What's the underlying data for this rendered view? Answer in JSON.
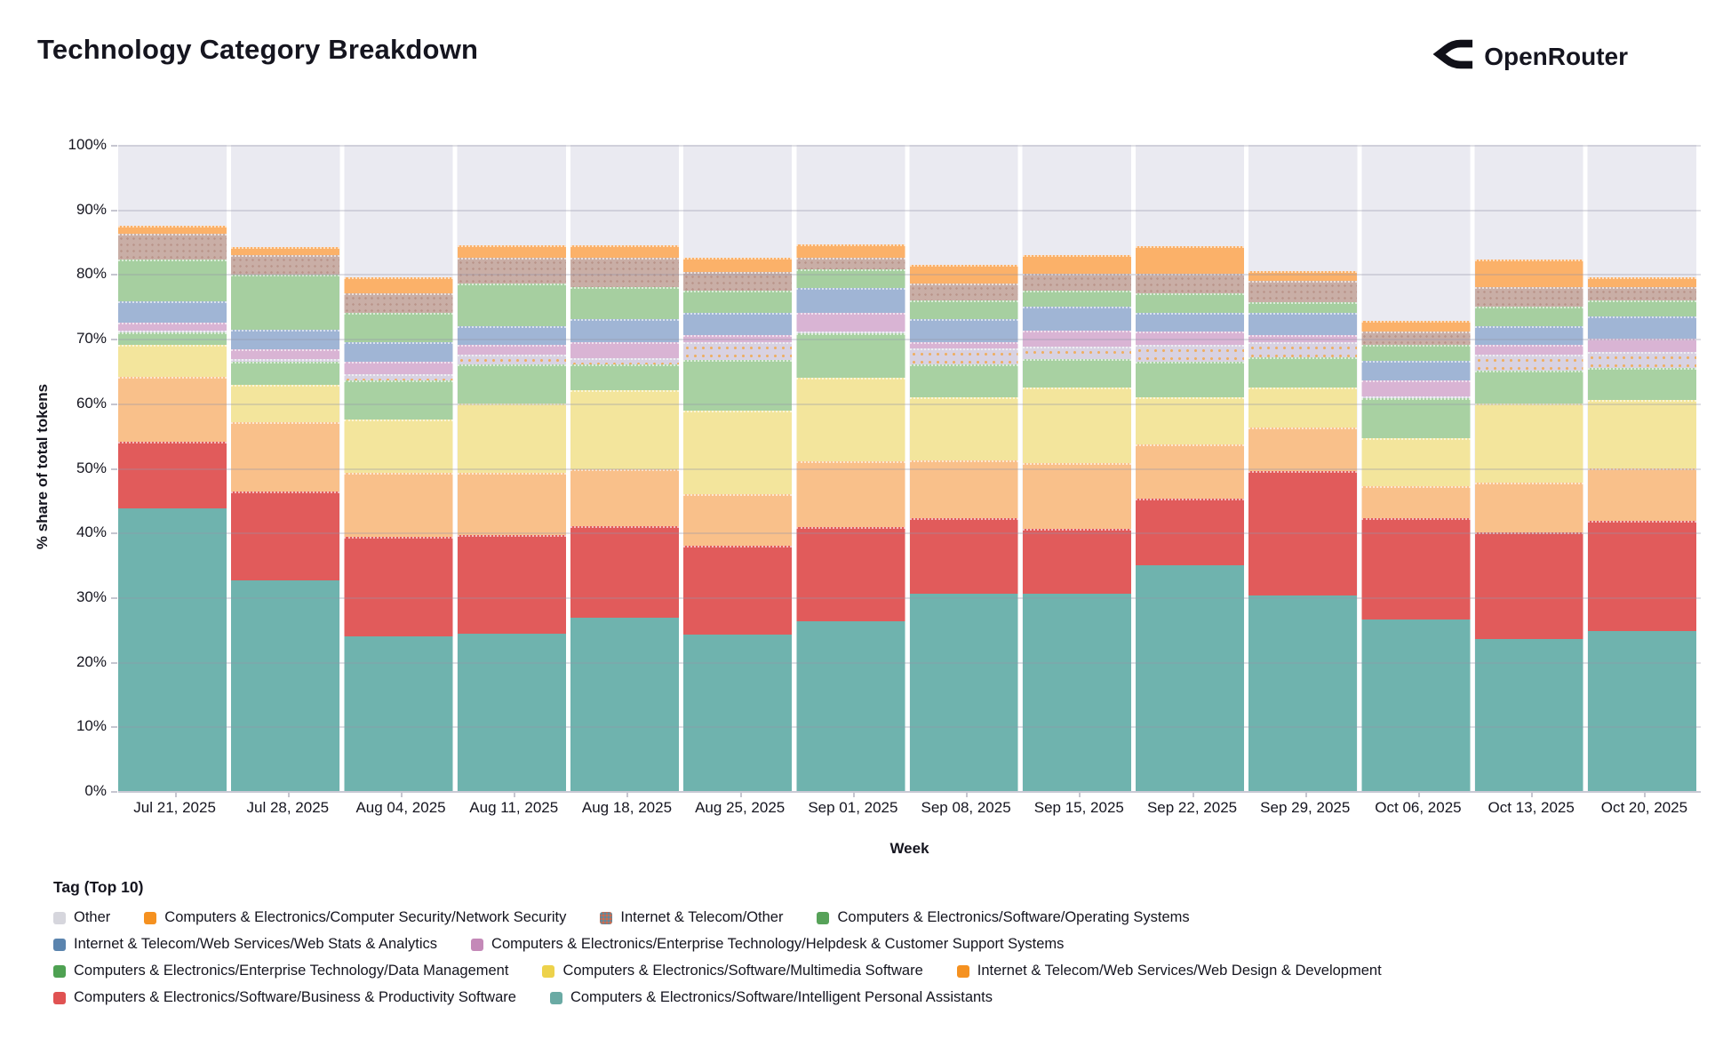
{
  "header": {
    "title": "Technology Category Breakdown",
    "brand": "OpenRouter"
  },
  "chart_data": {
    "type": "bar",
    "stacked": true,
    "title": "Technology Category Breakdown",
    "xlabel": "Week",
    "ylabel": "% share of total tokens",
    "ylim": [
      0,
      100
    ],
    "grid": true,
    "legend_position": "bottom",
    "legend_title": "Tag (Top 10)",
    "yticks": [
      0,
      10,
      20,
      30,
      40,
      50,
      60,
      70,
      80,
      90,
      100
    ],
    "ytick_labels": [
      "0%",
      "10%",
      "20%",
      "30%",
      "40%",
      "50%",
      "60%",
      "70%",
      "80%",
      "90%",
      "100%"
    ],
    "categories": [
      "Jul 21, 2025",
      "Jul 28, 2025",
      "Aug 04, 2025",
      "Aug 11, 2025",
      "Aug 18, 2025",
      "Aug 25, 2025",
      "Sep 01, 2025",
      "Sep 08, 2025",
      "Sep 15, 2025",
      "Sep 22, 2025",
      "Sep 29, 2025",
      "Oct 06, 2025",
      "Oct 13, 2025",
      "Oct 20, 2025"
    ],
    "series": [
      {
        "id": "ipa",
        "name": "Computers & Electronics/Software/Intelligent Personal Assistants",
        "color": "#6aaaa4",
        "bar_color": "#6fb3ae",
        "values": [
          43.7,
          32.6,
          24.0,
          24.4,
          26.8,
          24.2,
          26.3,
          30.6,
          30.6,
          35.0,
          30.2,
          26.5,
          23.5,
          24.8
        ]
      },
      {
        "id": "bps",
        "name": "Computers & Electronics/Software/Business & Productivity Software",
        "color": "#e05252",
        "bar_color": "#e15b5b",
        "values": [
          10.3,
          13.8,
          15.3,
          15.2,
          14.2,
          13.8,
          14.5,
          11.7,
          10.0,
          10.2,
          19.3,
          15.7,
          16.5,
          17.0
        ]
      },
      {
        "id": "wdd",
        "name": "Internet & Telecom/Web Services/Web Design & Development",
        "color": "#f59120",
        "bar_color": "#f9c08a",
        "values": [
          10.1,
          10.7,
          10.0,
          9.6,
          8.8,
          8.0,
          10.2,
          8.9,
          10.1,
          8.5,
          6.7,
          5.0,
          7.8,
          8.2
        ]
      },
      {
        "id": "mms",
        "name": "Computers & Electronics/Software/Multimedia Software",
        "color": "#edd24b",
        "bar_color": "#f3e59c",
        "values": [
          4.9,
          5.8,
          8.2,
          10.8,
          12.2,
          12.9,
          13.0,
          9.8,
          11.7,
          7.3,
          6.2,
          7.4,
          12.2,
          10.5
        ]
      },
      {
        "id": "dm",
        "name": "Computers & Electronics/Enterprise Technology/Data Management",
        "color": "#4ea152",
        "bar_color": "#a8d1a2",
        "values": [
          2.0,
          3.5,
          6.0,
          6.0,
          4.0,
          7.8,
          6.8,
          5.0,
          4.5,
          5.5,
          4.8,
          6.2,
          5.0,
          5.0
        ]
      },
      {
        "id": "other",
        "name": "Other",
        "color": "#d6d6dd",
        "bar_color": "#d8d2e2",
        "pattern": "orange-dots",
        "values": [
          0.3,
          0.5,
          1.0,
          1.5,
          1.0,
          2.8,
          0.2,
          2.5,
          1.9,
          2.5,
          2.3,
          0.2,
          2.5,
          2.5
        ]
      },
      {
        "id": "hd",
        "name": "Computers & Electronics/Enterprise Technology/Helpdesk & Customer Support Systems",
        "color": "#c489b8",
        "bar_color": "#d9b4d4",
        "values": [
          1.2,
          1.5,
          2.0,
          1.5,
          2.5,
          1.1,
          3.0,
          1.0,
          2.5,
          2.1,
          1.1,
          2.5,
          1.5,
          2.0
        ]
      },
      {
        "id": "wsa",
        "name": "Internet & Telecom/Web Services/Web Stats & Analytics",
        "color": "#5b84ae",
        "bar_color": "#a0b5d5",
        "values": [
          3.3,
          3.0,
          3.0,
          3.0,
          3.5,
          3.4,
          3.8,
          3.5,
          3.7,
          2.9,
          3.4,
          3.0,
          3.0,
          3.5
        ]
      },
      {
        "id": "os",
        "name": "Computers & Electronics/Software/Operating Systems",
        "color": "#57a259",
        "bar_color": "#a6cfa0",
        "values": [
          6.5,
          8.5,
          4.5,
          6.5,
          5.0,
          3.5,
          2.9,
          3.0,
          2.5,
          3.0,
          1.7,
          2.5,
          3.0,
          2.5
        ]
      },
      {
        "id": "ito",
        "name": "Internet & Telecom/Other",
        "color": "#9c6a5c",
        "bar_color": "#c9aea6",
        "pattern": "mottled",
        "values": [
          3.9,
          3.0,
          3.0,
          4.0,
          4.5,
          2.8,
          1.8,
          2.5,
          2.5,
          3.0,
          3.3,
          2.1,
          3.0,
          2.0
        ]
      },
      {
        "id": "ns",
        "name": "Computers & Electronics/Computer Security/Network Security",
        "color": "#f59120",
        "bar_color": "#fbb169",
        "values": [
          1.3,
          1.3,
          2.5,
          2.0,
          2.0,
          2.2,
          2.0,
          3.0,
          3.0,
          4.3,
          1.5,
          1.6,
          4.3,
          1.5
        ]
      }
    ],
    "legend_rows": [
      [
        "other",
        "ns",
        "ito",
        "os"
      ],
      [
        "wsa",
        "hd"
      ],
      [
        "dm",
        "mms",
        "wdd"
      ],
      [
        "bps",
        "ipa"
      ]
    ]
  }
}
